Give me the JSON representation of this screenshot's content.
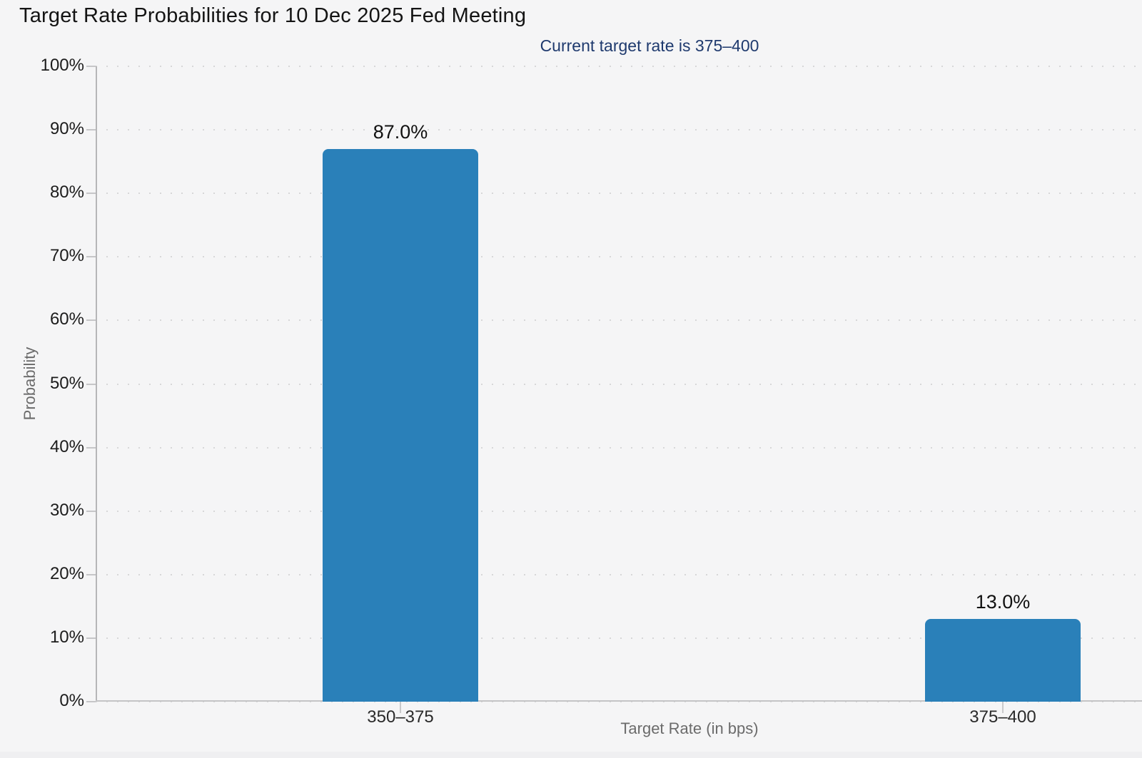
{
  "title": "Target Rate Probabilities for 10 Dec 2025 Fed Meeting",
  "subtitle": "Current target rate is 375–400",
  "chart_data": {
    "type": "bar",
    "title": "Target Rate Probabilities for 10 Dec 2025 Fed Meeting",
    "subtitle": "Current target rate is 375–400",
    "categories": [
      "350–375",
      "375–400"
    ],
    "values": [
      87.0,
      13.0
    ],
    "value_labels": [
      "87.0%",
      "13.0%"
    ],
    "xlabel": "Target Rate (in bps)",
    "ylabel": "Probability",
    "ylim": [
      0,
      100
    ],
    "ytick_step": 10,
    "ytick_labels": [
      "0%",
      "10%",
      "20%",
      "30%",
      "40%",
      "50%",
      "60%",
      "70%",
      "80%",
      "90%",
      "100%"
    ],
    "grid": "dotted-horizontal",
    "legend": "none"
  },
  "colors": {
    "background": "#f5f5f6",
    "bar": "#2a80b9",
    "subtitle_text": "#1f3a6e",
    "grid_dot": "#d7d7d8",
    "axis_line": "#bdbdbf",
    "muted_text": "#6b6b6b",
    "text": "#1c1c1c"
  }
}
